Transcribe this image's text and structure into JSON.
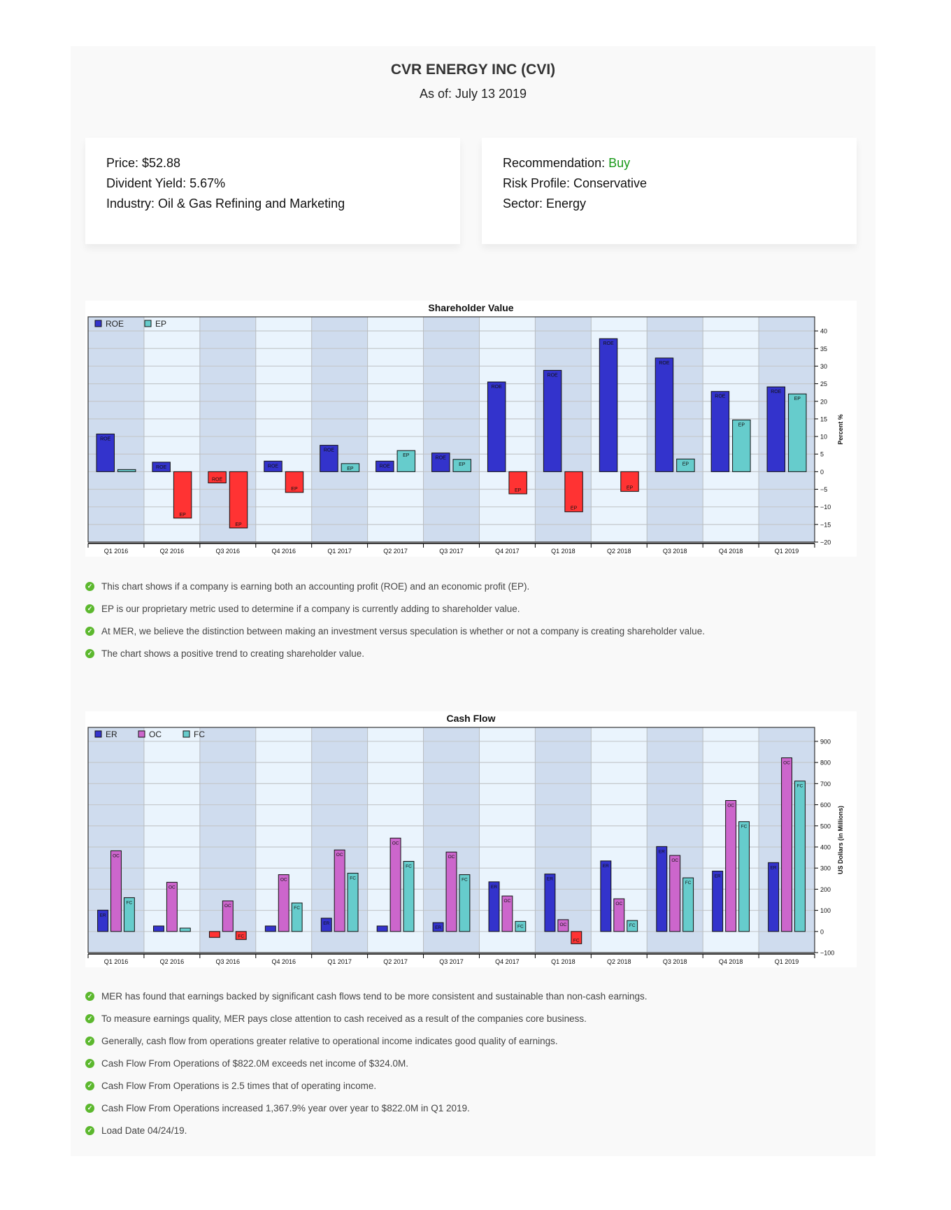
{
  "header": {
    "title": "CVR ENERGY INC (CVI)",
    "as_of": "As of: July 13 2019"
  },
  "info_left": {
    "price": "Price: $52.88",
    "yield": "Divident Yield: 5.67%",
    "industry": "Industry: Oil & Gas Refining and Marketing"
  },
  "info_right": {
    "recommendation_label": "Recommendation: ",
    "recommendation_value": "Buy",
    "risk": "Risk Profile: Conservative",
    "sector": "Sector: Energy"
  },
  "colors": {
    "buy": "#1a9a1a",
    "series1": "#3333cc",
    "series2_sv": "#66cccc",
    "oc": "#cc66cc",
    "fc": "#66cccc",
    "negative": "#ff3333",
    "band_dark": "#cfdcee",
    "band_light": "#eaf4fd"
  },
  "chart_data": [
    {
      "type": "bar",
      "title": "Shareholder Value",
      "ylabel": "Percent %",
      "xlabel": "",
      "ylim": [
        -20,
        44
      ],
      "yticks": [
        -20,
        -15,
        -10,
        -5,
        0,
        5,
        10,
        15,
        20,
        25,
        30,
        35,
        40
      ],
      "grid": true,
      "legend": "top-left",
      "categories": [
        "Q1 2016",
        "Q2 2016",
        "Q3 2016",
        "Q4 2016",
        "Q1 2017",
        "Q2 2017",
        "Q3 2017",
        "Q4 2017",
        "Q1 2018",
        "Q2 2018",
        "Q3 2018",
        "Q4 2018",
        "Q1 2019"
      ],
      "series": [
        {
          "name": "ROE",
          "label": "ROE",
          "color": "#3333cc",
          "values": [
            10.7,
            2.7,
            -3.2,
            3.0,
            7.5,
            3.0,
            5.3,
            25.5,
            28.8,
            37.8,
            32.3,
            22.8,
            24.1
          ]
        },
        {
          "name": "EP",
          "label": "EP",
          "color": "#66cccc",
          "values": [
            0.6,
            -13.2,
            -16.0,
            -5.9,
            2.3,
            6.0,
            3.5,
            -6.3,
            -11.4,
            -5.6,
            3.6,
            14.7,
            22.1
          ]
        }
      ]
    },
    {
      "type": "bar",
      "title": "Cash Flow",
      "ylabel": "US Dollars (in Millions)",
      "xlabel": "",
      "ylim": [
        -100,
        966
      ],
      "yticks": [
        -100,
        0,
        100,
        200,
        300,
        400,
        500,
        600,
        700,
        800,
        900
      ],
      "grid": true,
      "legend": "top-left",
      "categories": [
        "Q1 2016",
        "Q2 2016",
        "Q3 2016",
        "Q4 2016",
        "Q1 2017",
        "Q2 2017",
        "Q3 2017",
        "Q4 2017",
        "Q1 2018",
        "Q2 2018",
        "Q3 2018",
        "Q4 2018",
        "Q1 2019"
      ],
      "series": [
        {
          "name": "ER",
          "label": "ER",
          "color": "#3333cc",
          "values": [
            101,
            26,
            -28,
            26,
            63,
            26,
            42,
            235,
            272,
            334,
            402,
            286,
            326
          ]
        },
        {
          "name": "OC",
          "label": "OC",
          "color": "#cc66cc",
          "values": [
            382,
            233,
            145,
            269,
            386,
            442,
            376,
            168,
            56,
            155,
            360,
            620,
            822
          ]
        },
        {
          "name": "FC",
          "label": "FC",
          "color": "#66cccc",
          "values": [
            160,
            16,
            -38,
            135,
            276,
            332,
            269,
            48,
            -58,
            52,
            254,
            520,
            712
          ]
        }
      ]
    }
  ],
  "bullets_sv": [
    "This chart shows if a company is earning both an accounting profit (ROE) and an economic profit (EP).",
    "EP is our proprietary metric used to determine if a company is currently adding to shareholder value.",
    "At MER, we believe the distinction between making an investment versus speculation is whether or not a company is creating shareholder value.",
    "The chart shows a positive trend to creating shareholder value."
  ],
  "bullets_cf": [
    "MER has found that earnings backed by significant cash flows tend to be more consistent and sustainable than non-cash earnings.",
    "To measure earnings quality, MER pays close attention to cash received as a result of the companies core business.",
    "Generally, cash flow from operations greater relative to operational income indicates good quality of earnings.",
    "Cash Flow From Operations of $822.0M exceeds net income of $324.0M.",
    "Cash Flow From Operations is 2.5 times that of operating income.",
    "Cash Flow From Operations increased 1,367.9% year over year to $822.0M in Q1 2019.",
    "Load Date 04/24/19."
  ]
}
